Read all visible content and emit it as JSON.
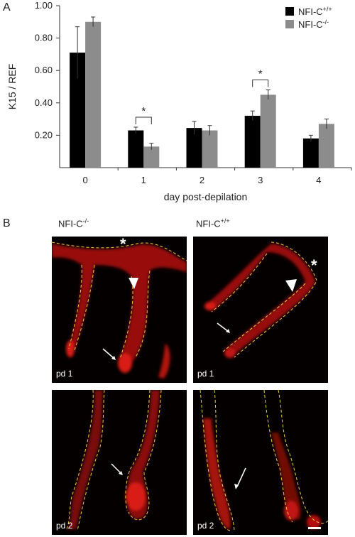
{
  "panel_a_label": "A",
  "panel_b_label": "B",
  "chart_data": {
    "type": "bar",
    "title": "",
    "xlabel": "day post-depilation",
    "ylabel": "K15 / REF",
    "ylim": [
      0,
      1.0
    ],
    "yticks": [
      "1.00",
      "0.80",
      "0.60",
      "0.40",
      "0.20"
    ],
    "categories": [
      "0",
      "1",
      "2",
      "3",
      "4"
    ],
    "series": [
      {
        "name": "NFI-C+/+",
        "name_base": "NFI-C",
        "name_sup": "+/+",
        "color": "#000000",
        "values": [
          0.71,
          0.23,
          0.245,
          0.32,
          0.18
        ],
        "errors": [
          0.16,
          0.02,
          0.04,
          0.03,
          0.02
        ]
      },
      {
        "name": "NFI-C-/-",
        "name_base": "NFI-C",
        "name_sup": "-/-",
        "color": "#8c8c8c",
        "values": [
          0.9,
          0.13,
          0.23,
          0.45,
          0.27
        ],
        "errors": [
          0.03,
          0.02,
          0.03,
          0.03,
          0.03
        ]
      }
    ],
    "significance": [
      {
        "category": "1",
        "label": "*"
      },
      {
        "category": "3",
        "label": "*"
      }
    ],
    "legend_position": "top-right"
  },
  "panel_b": {
    "columns": [
      {
        "base": "NFI-C",
        "sup": "-/-"
      },
      {
        "base": "NFI-C",
        "sup": "+/+"
      }
    ],
    "images": [
      {
        "label": "pd 1"
      },
      {
        "label": "pd 1"
      },
      {
        "label": "pd 2"
      },
      {
        "label": "pd 2"
      }
    ],
    "marker_asterisk": "*"
  }
}
